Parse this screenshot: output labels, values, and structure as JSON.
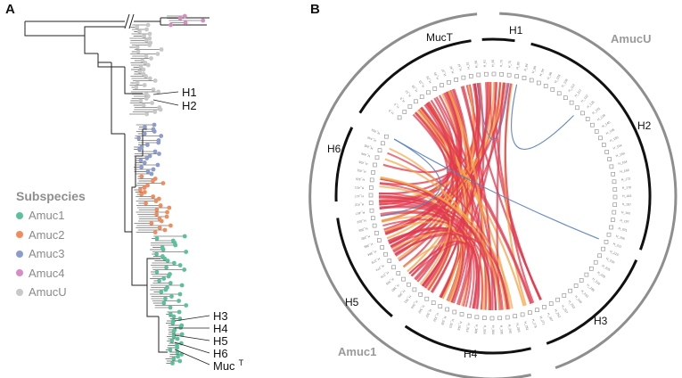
{
  "panels": {
    "a": "A",
    "b": "B"
  },
  "tree": {
    "break_mark": "//",
    "labels": [
      "H1",
      "H2",
      "H3",
      "H4",
      "H5",
      "H6",
      "Muc"
    ],
    "type_superscript": "T"
  },
  "legend": {
    "title": "Subspecies",
    "items": [
      {
        "name": "Amuc1",
        "color": "#5cc19b"
      },
      {
        "name": "Amuc2",
        "color": "#f28c5c"
      },
      {
        "name": "Amuc3",
        "color": "#8c9ccc"
      },
      {
        "name": "Amuc4",
        "color": "#d98cc4"
      },
      {
        "name": "AmucU",
        "color": "#c8c8c8"
      }
    ]
  },
  "circos": {
    "outer_labels": {
      "amucu": "AmucU",
      "amuc1": "Amuc1"
    },
    "inner_labels": {
      "muct": "MucT",
      "h1": "H1",
      "h2": "H2",
      "h3": "H3",
      "h4": "H4",
      "h5": "H5",
      "h6": "H6"
    },
    "colors": {
      "outer_ring": "#8e8e8e",
      "inner_ring": "#111111",
      "link_red": "#e03a4e",
      "link_orange": "#f3a64a",
      "link_blue": "#5a7fbf"
    }
  }
}
